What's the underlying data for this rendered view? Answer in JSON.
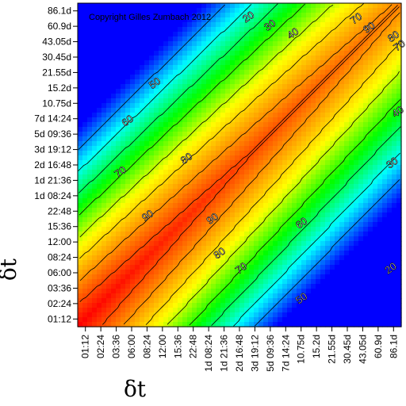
{
  "chart_data": {
    "type": "heatmap",
    "title": "",
    "xlabel": "δt",
    "ylabel": "δt",
    "x_ticks": [
      "01:12",
      "02:24",
      "03:36",
      "06:00",
      "08:24",
      "12:00",
      "15:36",
      "22:48",
      "1d 08:24",
      "1d 21:36",
      "2d 16:48",
      "3d 19:12",
      "5d 09:36",
      "7d 14:24",
      "10.75d",
      "15.2d",
      "21.55d",
      "30.45d",
      "43.05d",
      "60.9d",
      "86.1d"
    ],
    "y_ticks": [
      "01:12",
      "02:24",
      "03:36",
      "06:00",
      "08:24",
      "12:00",
      "15:36",
      "22:48",
      "1d 08:24",
      "1d 21:36",
      "2d 16:48",
      "3d 19:12",
      "5d 09:36",
      "7d 14:24",
      "10.75d",
      "15.2d",
      "21.55d",
      "30.45d",
      "43.05d",
      "60.9d",
      "86.1d"
    ],
    "contour_labels": [
      {
        "text": "20",
        "xi": 11.5,
        "yi": 19.9
      },
      {
        "text": "30",
        "xi": 13.0,
        "yi": 19.35
      },
      {
        "text": "40",
        "xi": 14.6,
        "yi": 18.8
      },
      {
        "text": "50",
        "xi": 5.0,
        "yi": 15.5
      },
      {
        "text": "60",
        "xi": 3.1,
        "yi": 13.0
      },
      {
        "text": "70",
        "xi": 2.6,
        "yi": 9.6
      },
      {
        "text": "80",
        "xi": 7.2,
        "yi": 10.5
      },
      {
        "text": "90",
        "xi": 4.5,
        "yi": 6.7
      },
      {
        "text": "90",
        "xi": 9.0,
        "yi": 6.5
      },
      {
        "text": "80",
        "xi": 9.5,
        "yi": 4.2
      },
      {
        "text": "70",
        "xi": 11.0,
        "yi": 3.2
      },
      {
        "text": "60",
        "xi": 15.2,
        "yi": 6.2
      },
      {
        "text": "50",
        "xi": 15.2,
        "yi": 1.2
      },
      {
        "text": "20",
        "xi": 21.4,
        "yi": 3.2
      },
      {
        "text": "30",
        "xi": 21.5,
        "yi": 10.2
      },
      {
        "text": "40",
        "xi": 21.9,
        "yi": 13.6
      },
      {
        "text": "70",
        "xi": 19.0,
        "yi": 19.8
      },
      {
        "text": "90",
        "xi": 19.9,
        "yi": 19.2
      },
      {
        "text": "80",
        "xi": 21.6,
        "yi": 18.6
      },
      {
        "text": "70",
        "xi": 22.0,
        "yi": 18.0
      }
    ],
    "contour_levels": [
      20,
      30,
      40,
      50,
      60,
      70,
      80,
      90
    ],
    "colormap": [
      "#0000ff",
      "#00ffff",
      "#00ff00",
      "#ffff00",
      "#ff8000",
      "#ff0000"
    ],
    "grid": false
  },
  "copyright": "Copyright Gilles Zumbach 2012"
}
